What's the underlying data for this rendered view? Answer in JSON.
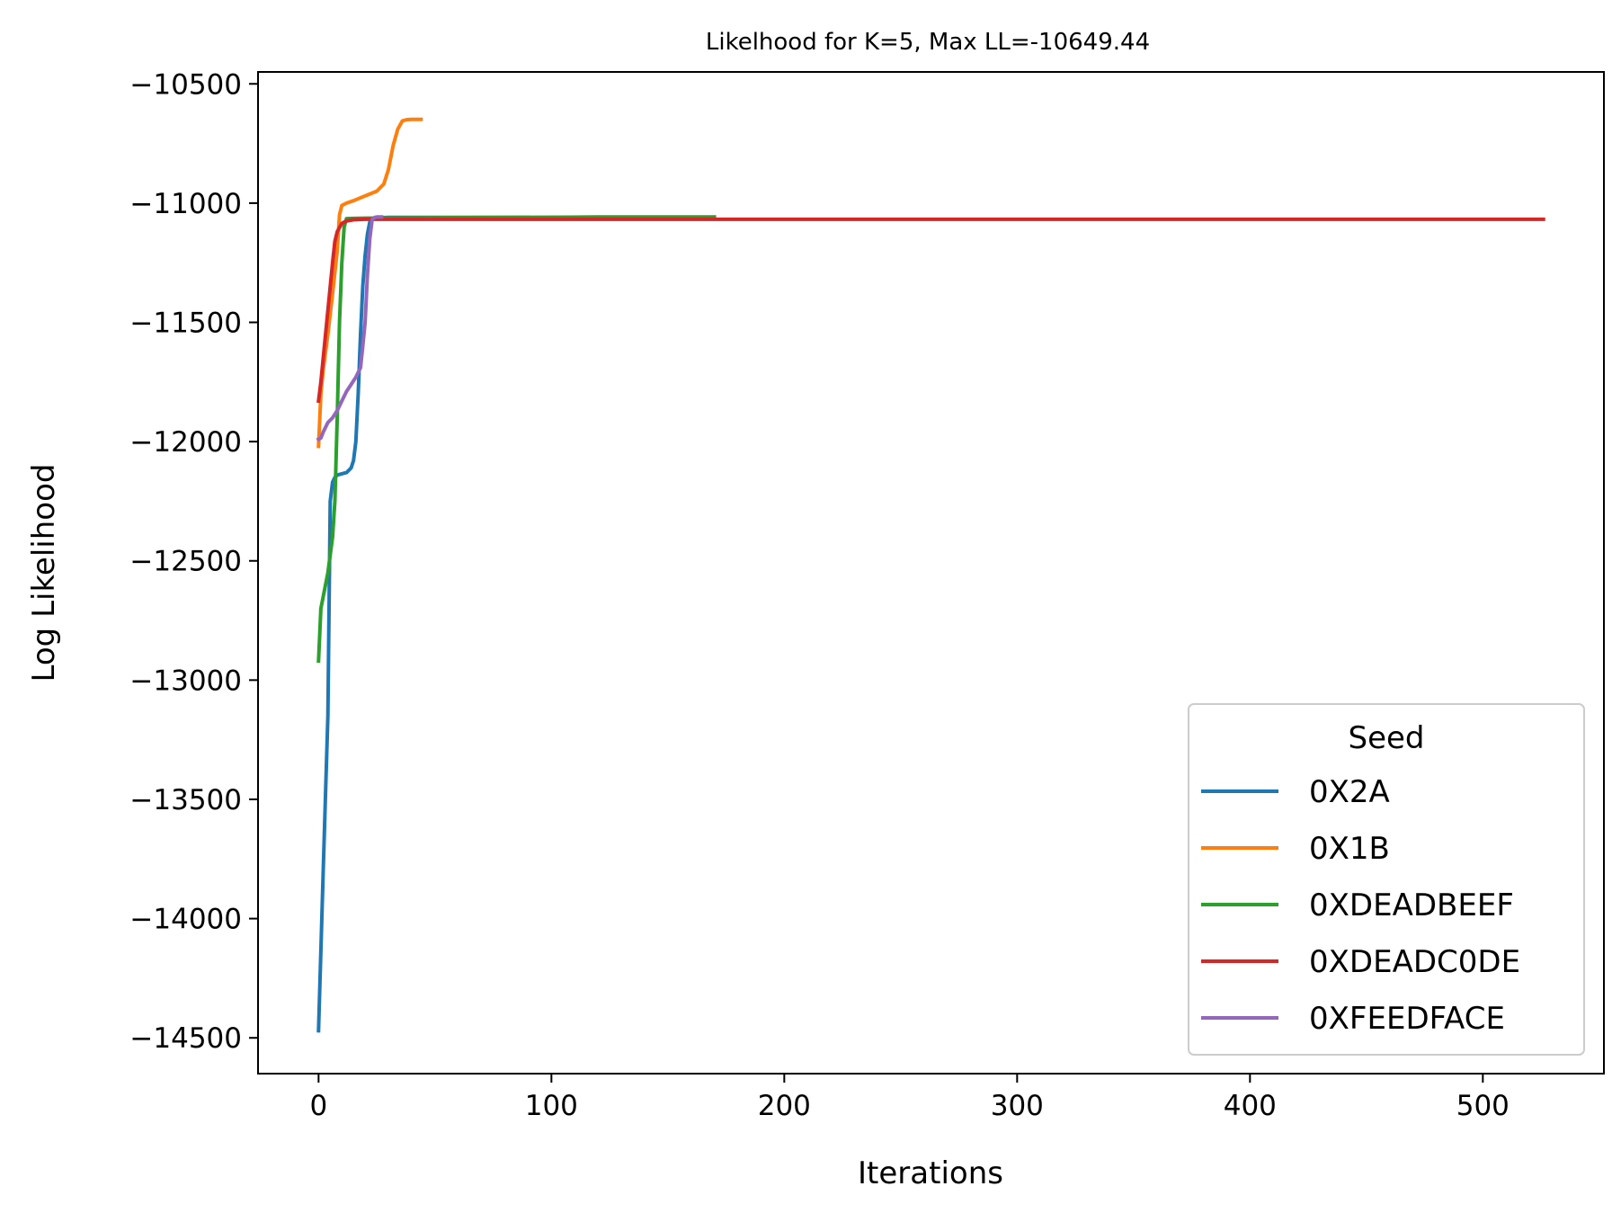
{
  "chart_data": {
    "type": "line",
    "title": "Likelhood for K=5,  Max LL=-10649.44",
    "xlabel": "Iterations",
    "ylabel": "Log Likelihood",
    "xlim": [
      -26,
      552
    ],
    "ylim": [
      -14650,
      -10450
    ],
    "xticks": [
      0,
      100,
      200,
      300,
      400,
      500
    ],
    "yticks": [
      -10500,
      -11000,
      -11500,
      -12000,
      -12500,
      -13000,
      -13500,
      -14000,
      -14500
    ],
    "grid": false,
    "legend": {
      "title": "Seed",
      "placement": "lower-right"
    },
    "series": [
      {
        "name": "0X2A",
        "color": "#1f77b4",
        "x": [
          0,
          2,
          4,
          5,
          6,
          7,
          8,
          10,
          12,
          14,
          15,
          16,
          17,
          18,
          19,
          20,
          21,
          22,
          23,
          25,
          30,
          40,
          60,
          90
        ],
        "y": [
          -14470,
          -13800,
          -13150,
          -12250,
          -12170,
          -12150,
          -12140,
          -12135,
          -12130,
          -12110,
          -12080,
          -12000,
          -11800,
          -11550,
          -11350,
          -11220,
          -11130,
          -11080,
          -11065,
          -11062,
          -11060,
          -11060,
          -11060,
          -11060
        ]
      },
      {
        "name": "0X1B",
        "color": "#ff7f0e",
        "x": [
          0,
          1,
          2,
          4,
          6,
          8,
          9,
          10,
          12,
          15,
          20,
          25,
          28,
          30,
          32,
          34,
          36,
          38,
          40,
          44
        ],
        "y": [
          -12020,
          -11800,
          -11700,
          -11550,
          -11380,
          -11200,
          -11050,
          -11010,
          -11000,
          -10990,
          -10970,
          -10950,
          -10920,
          -10860,
          -10760,
          -10690,
          -10655,
          -10650,
          -10649,
          -10649
        ]
      },
      {
        "name": "0XDEADBEEF",
        "color": "#2ca02c",
        "x": [
          0,
          1,
          2,
          4,
          6,
          7,
          8,
          9,
          10,
          11,
          12,
          15,
          20,
          40,
          80,
          120,
          170
        ],
        "y": [
          -12920,
          -12700,
          -12650,
          -12550,
          -12400,
          -12250,
          -11900,
          -11500,
          -11250,
          -11100,
          -11065,
          -11064,
          -11063,
          -11062,
          -11060,
          -11058,
          -11058
        ]
      },
      {
        "name": "0XDEADC0DE",
        "color": "#d62728",
        "x": [
          0,
          1,
          2,
          3,
          4,
          5,
          6,
          7,
          8,
          10,
          12,
          15,
          20,
          50,
          100,
          200,
          300,
          400,
          526
        ],
        "y": [
          -11830,
          -11750,
          -11650,
          -11550,
          -11450,
          -11350,
          -11250,
          -11160,
          -11120,
          -11085,
          -11075,
          -11070,
          -11068,
          -11068,
          -11068,
          -11068,
          -11068,
          -11068,
          -11068
        ]
      },
      {
        "name": "0XFEEDFACE",
        "color": "#9467bd",
        "x": [
          0,
          1,
          2,
          3,
          4,
          6,
          8,
          10,
          12,
          14,
          16,
          18,
          19,
          20,
          21,
          22,
          23,
          24,
          25,
          27
        ],
        "y": [
          -11990,
          -11985,
          -11960,
          -11940,
          -11920,
          -11900,
          -11870,
          -11830,
          -11790,
          -11760,
          -11730,
          -11690,
          -11600,
          -11500,
          -11300,
          -11150,
          -11070,
          -11060,
          -11058,
          -11058
        ]
      }
    ]
  }
}
